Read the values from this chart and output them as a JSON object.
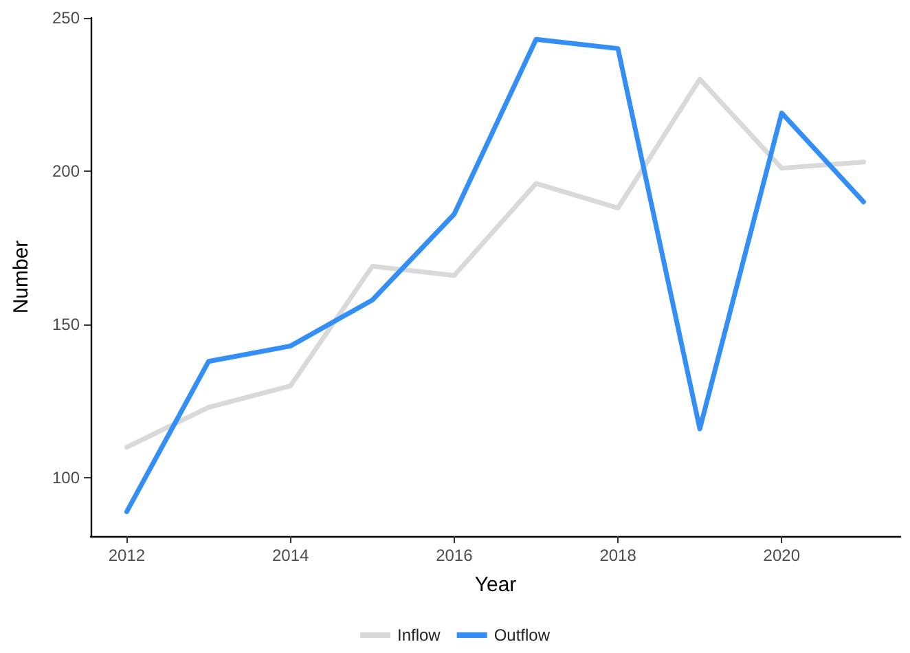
{
  "chart_data": {
    "type": "line",
    "xlabel": "Year",
    "ylabel": "Number",
    "x": [
      2012,
      2013,
      2014,
      2015,
      2016,
      2017,
      2018,
      2019,
      2020,
      2021
    ],
    "series": [
      {
        "name": "Inflow",
        "color": "#d9d9d9",
        "values": [
          110,
          123,
          130,
          169,
          166,
          196,
          188,
          230,
          201,
          203
        ]
      },
      {
        "name": "Outflow",
        "color": "#338ff5",
        "values": [
          89,
          138,
          143,
          158,
          186,
          243,
          240,
          116,
          219,
          190
        ]
      }
    ],
    "xlim": [
      2011.56,
      2021.45
    ],
    "xticks": [
      2012,
      2014,
      2016,
      2018,
      2020
    ],
    "ylim": [
      81,
      250
    ],
    "yticks": [
      100,
      150,
      200,
      250
    ],
    "grid": false,
    "legend": "bottom",
    "marker": "none",
    "line_style": "solid"
  }
}
